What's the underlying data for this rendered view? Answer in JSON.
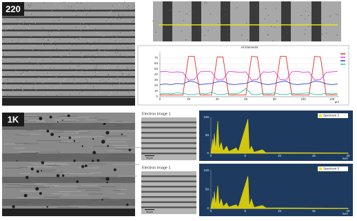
{
  "panels": {
    "sem_220": {
      "label": "220"
    },
    "sem_1k": {
      "label": "1K"
    },
    "electron_images": [
      {
        "title": "Electron Image 1",
        "scale": "50µm"
      },
      {
        "title": "Electron Image 1",
        "scale": "50µm"
      }
    ]
  },
  "chart_data": [
    {
      "type": "line",
      "title": "All Elements",
      "xlabel": "µm",
      "x": [
        0,
        4,
        8,
        12,
        16,
        20,
        24,
        28,
        32,
        36,
        40,
        44,
        48,
        52,
        56,
        60,
        64,
        68,
        72,
        76,
        80,
        84,
        88,
        92,
        96,
        100,
        104,
        108,
        112,
        116,
        120,
        124
      ],
      "series": [
        {
          "color": "#e03020",
          "values": [
            3,
            3,
            3,
            3,
            3,
            73,
            73,
            3,
            3,
            3,
            72,
            72,
            3,
            3,
            3,
            3,
            73,
            72,
            3,
            3,
            3,
            73,
            73,
            3,
            3,
            3,
            3,
            73,
            72,
            3,
            3,
            3
          ]
        },
        {
          "color": "#e040e0",
          "values": [
            45,
            46,
            44,
            45,
            44,
            30,
            31,
            45,
            46,
            45,
            30,
            31,
            46,
            45,
            44,
            45,
            30,
            31,
            45,
            44,
            46,
            31,
            30,
            45,
            46,
            44,
            45,
            30,
            31,
            44,
            45,
            46
          ]
        },
        {
          "color": "#3040c0",
          "values": [
            22,
            23,
            22,
            24,
            23,
            28,
            27,
            22,
            23,
            24,
            27,
            28,
            23,
            22,
            23,
            24,
            28,
            27,
            23,
            22,
            24,
            27,
            28,
            23,
            22,
            23,
            24,
            28,
            27,
            23,
            22,
            23
          ]
        },
        {
          "color": "#30c0a0",
          "values": [
            5,
            6,
            5,
            7,
            6,
            4,
            4,
            6,
            5,
            8,
            4,
            4,
            6,
            5,
            7,
            15,
            4,
            4,
            6,
            5,
            7,
            4,
            4,
            6,
            5,
            6,
            7,
            4,
            4,
            6,
            5,
            6
          ]
        }
      ],
      "xlim": [
        0,
        125
      ],
      "xticks": [
        0,
        20,
        40,
        60,
        80,
        100,
        120
      ],
      "ylim": [
        0,
        80
      ],
      "yticks": [
        0,
        10,
        20,
        30,
        40,
        50,
        60,
        70
      ],
      "grid": true
    },
    {
      "type": "area",
      "xlabel": "keV",
      "x": [
        0,
        0.3,
        0.4,
        0.5,
        0.7,
        1.0,
        1.2,
        1.5,
        1.8,
        2.3,
        2.6,
        3.7,
        4.0,
        5.4,
        5.6,
        5.9,
        6.3,
        7.5,
        8,
        20
      ],
      "series": [
        {
          "name": "Spectrum 2",
          "color": "#f0e000",
          "values": [
            2,
            40,
            10,
            55,
            8,
            90,
            10,
            30,
            6,
            20,
            5,
            15,
            4,
            95,
            6,
            20,
            3,
            10,
            2,
            1
          ]
        }
      ],
      "xlim": [
        0,
        20
      ],
      "xticks": [
        0,
        5,
        10,
        15,
        20
      ],
      "ylim": [
        0,
        100
      ],
      "yticks": [
        0,
        50,
        100
      ]
    },
    {
      "type": "area",
      "xlabel": "keV",
      "x": [
        0,
        0.3,
        0.4,
        0.5,
        0.7,
        1.0,
        1.2,
        1.5,
        1.8,
        2.3,
        2.6,
        3.7,
        4.0,
        5.4,
        5.6,
        5.9,
        6.3,
        7.5,
        8,
        20
      ],
      "series": [
        {
          "name": "Spectrum 5",
          "color": "#f0e000",
          "values": [
            2,
            30,
            8,
            45,
            6,
            60,
            8,
            25,
            5,
            15,
            4,
            10,
            3,
            85,
            5,
            25,
            3,
            8,
            2,
            1
          ]
        }
      ],
      "xlim": [
        0,
        20
      ],
      "xticks": [
        0,
        5,
        10,
        15,
        20
      ],
      "ylim": [
        0,
        100
      ],
      "yticks": [
        0,
        50,
        100
      ]
    }
  ]
}
